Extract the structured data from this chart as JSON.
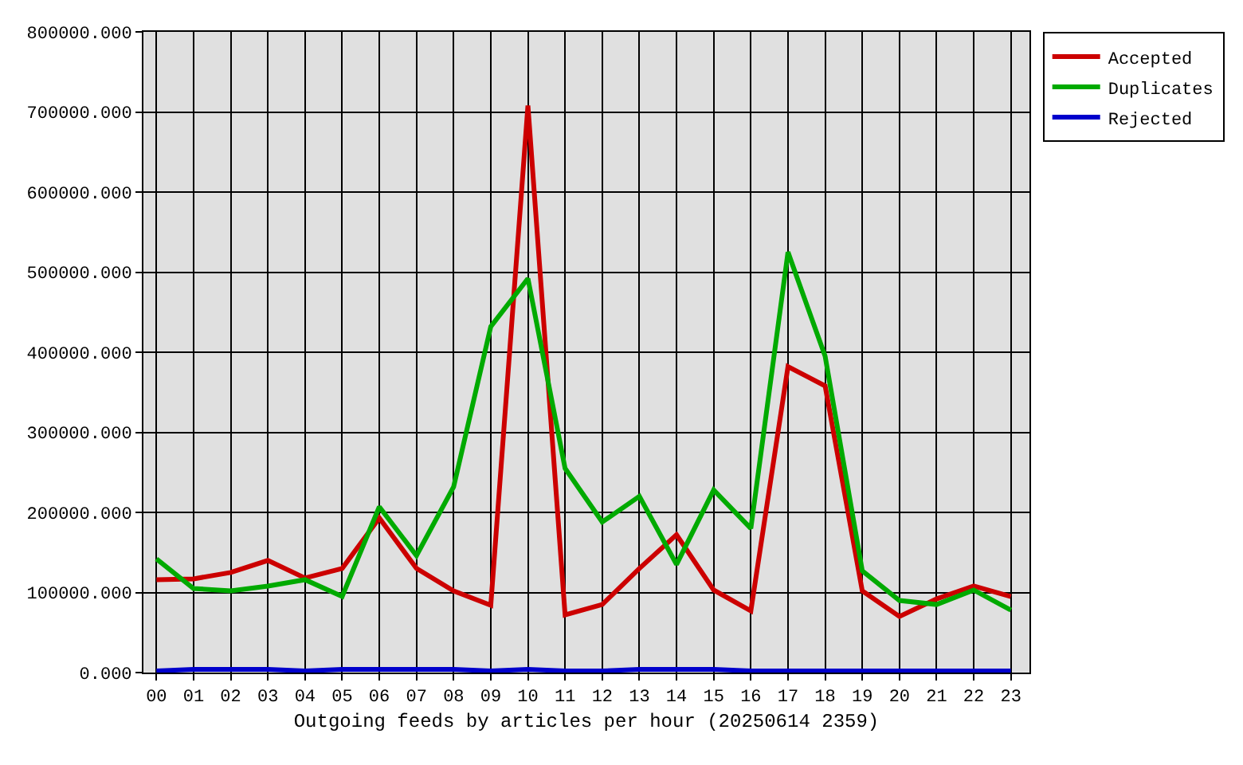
{
  "chart_data": {
    "type": "line",
    "xlabel": "Outgoing feeds by articles per hour (20250614 2359)",
    "categories": [
      "00",
      "01",
      "02",
      "03",
      "04",
      "05",
      "06",
      "07",
      "08",
      "09",
      "10",
      "11",
      "12",
      "13",
      "14",
      "15",
      "16",
      "17",
      "18",
      "19",
      "20",
      "21",
      "22",
      "23"
    ],
    "series": [
      {
        "name": "Accepted",
        "color": "#cc0000",
        "values": [
          116000,
          117000,
          125000,
          140000,
          118000,
          130000,
          193000,
          130000,
          102000,
          84000,
          708000,
          72000,
          85000,
          130000,
          172000,
          103000,
          77000,
          382000,
          358000,
          102000,
          70000,
          92000,
          108000,
          95000
        ]
      },
      {
        "name": "Duplicates",
        "color": "#00aa00",
        "values": [
          142000,
          105000,
          102000,
          108000,
          116000,
          95000,
          207000,
          146000,
          232000,
          432000,
          492000,
          255000,
          188000,
          220000,
          135000,
          228000,
          180000,
          525000,
          395000,
          127000,
          90000,
          85000,
          103000,
          78000
        ]
      },
      {
        "name": "Rejected",
        "color": "#0000cc",
        "values": [
          2000,
          4000,
          4000,
          4000,
          2000,
          4000,
          4000,
          4000,
          4000,
          2000,
          4000,
          2000,
          2000,
          4000,
          4000,
          4000,
          2000,
          2000,
          2000,
          2000,
          2000,
          2000,
          2000,
          2000
        ]
      }
    ],
    "ylim": [
      0,
      800000
    ],
    "yticks": [
      {
        "value": 0,
        "label": "0.000"
      },
      {
        "value": 100000,
        "label": "100000.000"
      },
      {
        "value": 200000,
        "label": "200000.000"
      },
      {
        "value": 300000,
        "label": "300000.000"
      },
      {
        "value": 400000,
        "label": "400000.000"
      },
      {
        "value": 500000,
        "label": "500000.000"
      },
      {
        "value": 600000,
        "label": "600000.000"
      },
      {
        "value": 700000,
        "label": "700000.000"
      },
      {
        "value": 800000,
        "label": "800000.000"
      }
    ],
    "grid": true,
    "legend": "top right",
    "line_style": "solid"
  }
}
